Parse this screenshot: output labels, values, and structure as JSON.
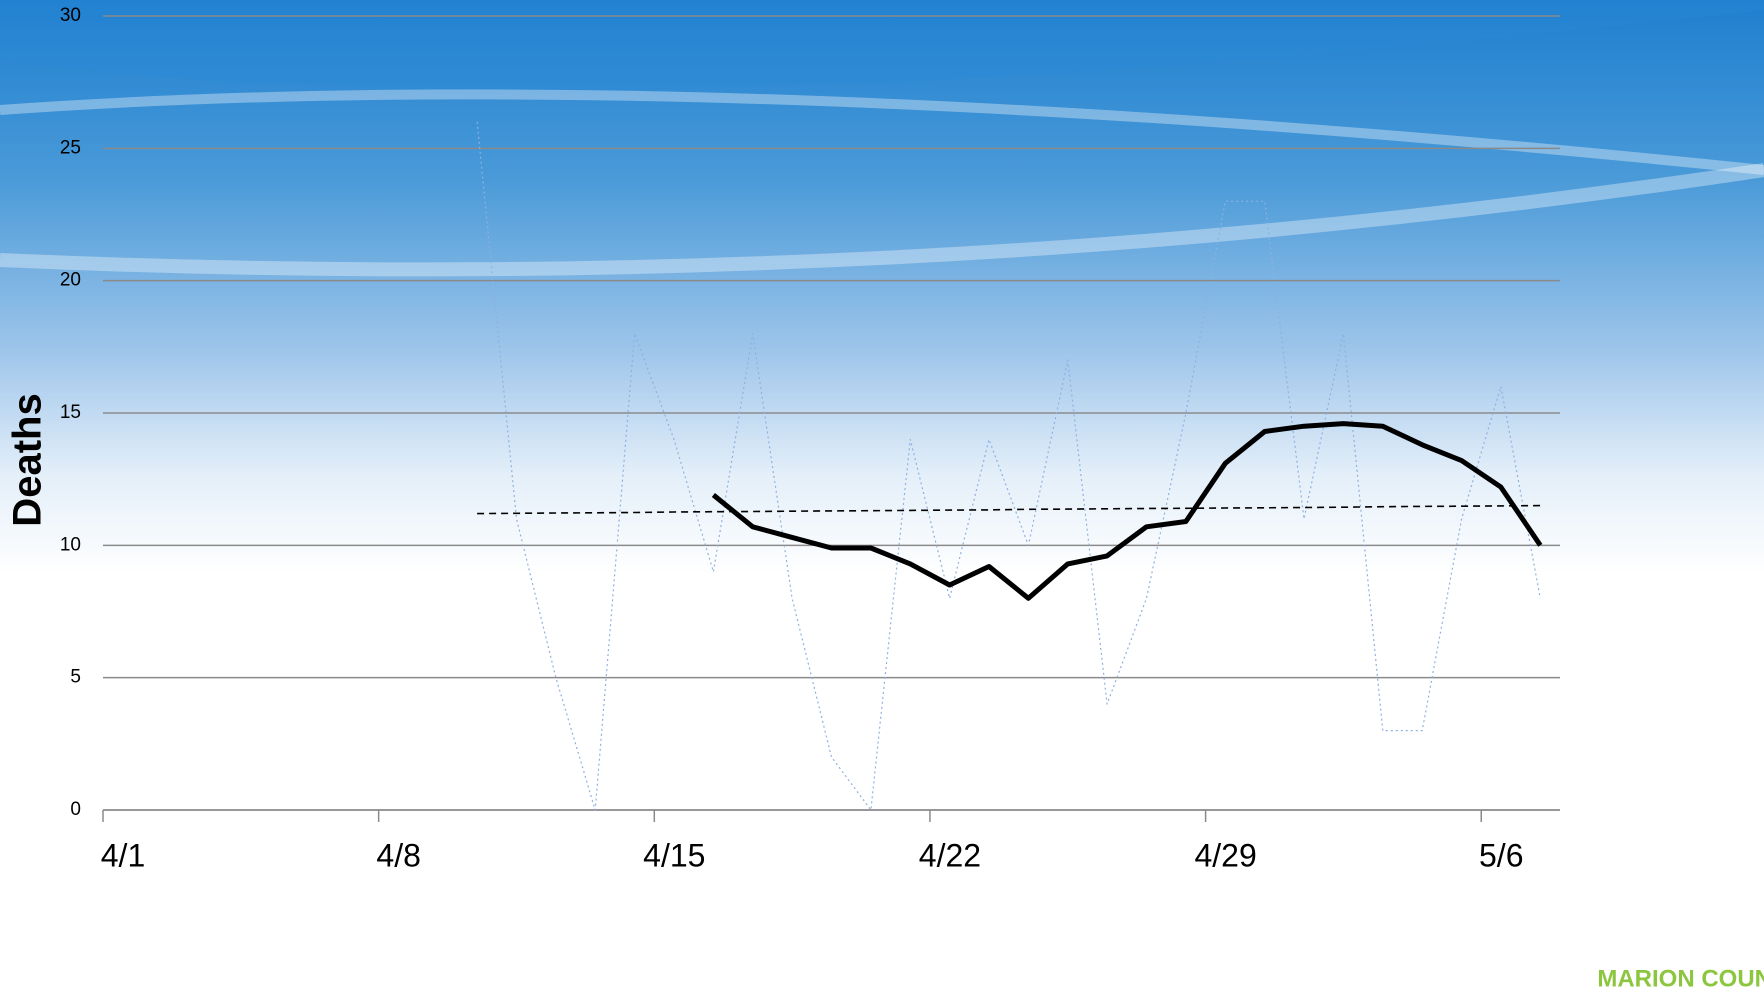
{
  "chart_data": {
    "type": "line",
    "y_label": "Deaths",
    "brand": "MARION COUNTY",
    "categories": [
      "4/1",
      null,
      null,
      null,
      null,
      null,
      null,
      "4/8",
      null,
      null,
      null,
      null,
      null,
      null,
      "4/15",
      null,
      null,
      null,
      null,
      null,
      null,
      "4/22",
      null,
      null,
      null,
      null,
      null,
      null,
      "4/29",
      null,
      null,
      null,
      null,
      null,
      null,
      "5/6",
      null
    ],
    "series": [
      {
        "color": "#8fb0e0",
        "dash": "dotted",
        "width": 1.2,
        "values": [
          null,
          null,
          null,
          null,
          null,
          null,
          null,
          null,
          null,
          26,
          11,
          5,
          0,
          18,
          14,
          9,
          18,
          8,
          2,
          0,
          14,
          8,
          14,
          10,
          17,
          4,
          8,
          15,
          23,
          23,
          11,
          18,
          3,
          3,
          11,
          16,
          8
        ]
      },
      {
        "color": "#000000",
        "dash": "solid",
        "width": 5,
        "values": [
          null,
          null,
          null,
          null,
          null,
          null,
          null,
          null,
          null,
          null,
          null,
          null,
          null,
          null,
          null,
          11.9,
          10.7,
          10.3,
          9.9,
          9.9,
          9.3,
          8.5,
          9.2,
          8.0,
          9.3,
          9.6,
          10.7,
          10.9,
          13.1,
          14.3,
          14.5,
          14.6,
          14.5,
          13.8,
          13.2,
          12.2,
          10.0
        ]
      },
      {
        "color": "#000000",
        "dash": "dashed",
        "width": 1.6,
        "values": [
          null,
          null,
          null,
          null,
          null,
          null,
          null,
          null,
          null,
          11.2,
          11.21,
          11.22,
          11.23,
          11.24,
          11.26,
          11.27,
          11.28,
          11.29,
          11.3,
          11.31,
          11.32,
          11.33,
          11.34,
          11.36,
          11.37,
          11.38,
          11.39,
          11.4,
          11.41,
          11.42,
          11.43,
          11.44,
          11.46,
          11.47,
          11.48,
          11.49,
          11.5
        ]
      }
    ],
    "ylim": [
      0,
      30
    ],
    "yticks": [
      0,
      5,
      10,
      15,
      20,
      25,
      30
    ],
    "grid": true
  }
}
